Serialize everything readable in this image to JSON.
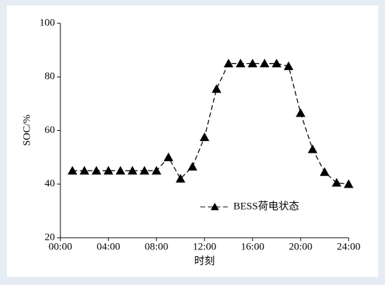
{
  "chart_data": {
    "type": "line",
    "x_label": "时刻",
    "y_label": "SOC/%",
    "x": [
      1,
      2,
      3,
      4,
      5,
      6,
      7,
      8,
      9,
      10,
      11,
      12,
      13,
      14,
      15,
      16,
      17,
      18,
      19,
      20,
      21,
      22,
      23,
      24
    ],
    "series": [
      {
        "name": "BESS荷电状态",
        "color": "#000000",
        "values": [
          45,
          45,
          45,
          45,
          45,
          45,
          45,
          45,
          50,
          42,
          46.5,
          57.5,
          75.5,
          85,
          85,
          85,
          85,
          85,
          84,
          66.5,
          53,
          44.5,
          40.5,
          40
        ]
      }
    ],
    "xlim": [
      0,
      24
    ],
    "xticks": [
      {
        "value": 0,
        "label": "00:00"
      },
      {
        "value": 4,
        "label": "04:00"
      },
      {
        "value": 8,
        "label": "08:00"
      },
      {
        "value": 12,
        "label": "12:00"
      },
      {
        "value": 16,
        "label": "16:00"
      },
      {
        "value": 20,
        "label": "20:00"
      },
      {
        "value": 24,
        "label": "24:00"
      }
    ],
    "ylim": [
      20,
      100
    ],
    "yticks": [
      20,
      40,
      60,
      80,
      100
    ],
    "legend": "bottom-right"
  }
}
